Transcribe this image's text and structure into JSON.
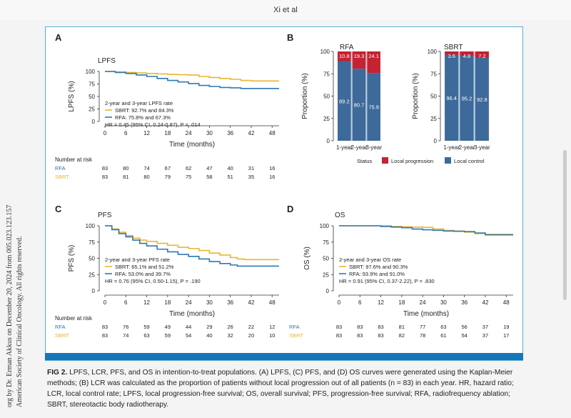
{
  "running_head": "Xi et al",
  "sidebar_lines": [
    "org by Dr. Erman Akkus on December 20, 2024 from 005.023.123.157",
    "American Society of Clinical Oncology. All rights reserved."
  ],
  "caption": {
    "label": "FIG 2.",
    "text": "LPFS, LCR, PFS, and OS in intention-to-treat populations. (A) LPFS, (C) PFS, and (D) OS curves were generated using the Kaplan-Meier methods; (B) LCR was calculated as the proportion of patients without local progression out of all patients (n = 83) in each year. HR, hazard ratio; LCR, local control rate; LPFS, local progression-free survival; OS, overall survival; PFS, progression-free survival; RFA, radiofrequency ablation; SBRT, stereotactic body radiotherapy."
  },
  "colors": {
    "sbrt": "#e8b630",
    "rfa": "#2e78b4",
    "local_control": "#3d6a9a",
    "local_progression": "#c52233",
    "frame": "#5aaed0",
    "bluebar": "#1577b9"
  },
  "panels": {
    "A": {
      "letter": "A",
      "title": "LPFS",
      "ylabel": "LPFS (%)",
      "xlabel": "Time (months)",
      "legend_title": "2-year and 3-year LPFS rate",
      "sbrt_label": "SBRT: 92.7% and 84.3%",
      "rfa_label": "RFA: 75.8% and 67.3%",
      "hr": "HR = 0.45 (95% CI, 0.24-0.87), P = .014"
    },
    "B": {
      "letter": "B",
      "status_label": "Status",
      "lp_label": "Local progression",
      "lc_label": "Local control",
      "ylabel": "Proportion (%)"
    },
    "C": {
      "letter": "C",
      "title": "PFS",
      "ylabel": "PFS (%)",
      "xlabel": "Time (months)",
      "legend_title": "2-year and 3-year PFS rate",
      "sbrt_label": "SBRT: 65.1% and 51.2%",
      "rfa_label": "RFA: 53.0% and 39.7%",
      "hr": "HR = 0.76 (95% CI, 0.50-1.15), P = .190"
    },
    "D": {
      "letter": "D",
      "title": "OS",
      "ylabel": "OS (%)",
      "xlabel": "Time (months)",
      "legend_title": "2-year and 3-year OS rate",
      "sbrt_label": "SBRT: 97.6% and 90.3%",
      "rfa_label": "RFA: 93.9% and 91.0%",
      "hr": "HR = 0.91 (95% CI, 0.37-2.22), P = .830"
    }
  },
  "risk": {
    "header": "Number at risk",
    "A": {
      "RFA": [
        "83",
        "80",
        "74",
        "67",
        "62",
        "47",
        "40",
        "31",
        "16"
      ],
      "SBRT": [
        "83",
        "81",
        "80",
        "79",
        "75",
        "58",
        "51",
        "35",
        "16"
      ]
    },
    "C": {
      "RFA": [
        "83",
        "76",
        "59",
        "49",
        "44",
        "29",
        "26",
        "22",
        "12"
      ],
      "SBRT": [
        "83",
        "74",
        "63",
        "59",
        "54",
        "40",
        "32",
        "20",
        "10"
      ]
    },
    "D": {
      "RFA": [
        "83",
        "83",
        "83",
        "81",
        "77",
        "63",
        "56",
        "37",
        "19"
      ],
      "SBRT": [
        "83",
        "83",
        "83",
        "82",
        "78",
        "61",
        "54",
        "37",
        "17"
      ]
    }
  },
  "chart_data": [
    {
      "panel": "A",
      "type": "line",
      "title": "LPFS",
      "xlabel": "Time (months)",
      "ylabel": "LPFS (%)",
      "xlim": [
        0,
        50
      ],
      "ylim": [
        0,
        100
      ],
      "xticks": [
        "0",
        "6",
        "12",
        "18",
        "24",
        "30",
        "36",
        "42",
        "48"
      ],
      "yticks": [
        "0",
        "25",
        "50",
        "75",
        "100"
      ],
      "series": [
        {
          "name": "SBRT",
          "x": [
            0,
            3,
            6,
            9,
            12,
            15,
            18,
            21,
            24,
            27,
            30,
            33,
            36,
            39,
            42,
            45,
            48,
            50
          ],
          "y": [
            100,
            99,
            98,
            97,
            96,
            95,
            94,
            93.5,
            92.7,
            90,
            88,
            86,
            84.3,
            82,
            81,
            81,
            81,
            81
          ]
        },
        {
          "name": "RFA",
          "x": [
            0,
            3,
            6,
            9,
            12,
            15,
            18,
            21,
            24,
            27,
            30,
            33,
            36,
            39,
            42,
            45,
            48,
            50
          ],
          "y": [
            100,
            98,
            96,
            93,
            90,
            86,
            82,
            79,
            75.8,
            72,
            70,
            68,
            67.3,
            66,
            66,
            66,
            66,
            66
          ]
        }
      ]
    },
    {
      "panel": "B-RFA",
      "type": "bar",
      "title": "RFA",
      "ylabel": "Proportion (%)",
      "ylim": [
        0,
        100
      ],
      "yticks": [
        "0",
        "25",
        "50",
        "75",
        "100"
      ],
      "categories": [
        "1-year",
        "2-year",
        "3-year"
      ],
      "series": [
        {
          "name": "Local control",
          "values": [
            89.2,
            80.7,
            75.9
          ]
        },
        {
          "name": "Local progression",
          "values": [
            10.8,
            19.3,
            24.1
          ]
        }
      ]
    },
    {
      "panel": "B-SBRT",
      "type": "bar",
      "title": "SBRT",
      "ylabel": "Proportion (%)",
      "ylim": [
        0,
        100
      ],
      "yticks": [
        "0",
        "25",
        "50",
        "75",
        "100"
      ],
      "categories": [
        "1-year",
        "2-year",
        "3-year"
      ],
      "series": [
        {
          "name": "Local control",
          "values": [
            96.4,
            95.2,
            92.8
          ]
        },
        {
          "name": "Local progression",
          "values": [
            3.6,
            4.8,
            7.2
          ]
        }
      ]
    },
    {
      "panel": "C",
      "type": "line",
      "title": "PFS",
      "xlabel": "Time (months)",
      "ylabel": "PFS (%)",
      "xlim": [
        0,
        50
      ],
      "ylim": [
        0,
        100
      ],
      "xticks": [
        "0",
        "6",
        "12",
        "18",
        "24",
        "30",
        "36",
        "42",
        "48"
      ],
      "yticks": [
        "0",
        "25",
        "50",
        "75",
        "100"
      ],
      "series": [
        {
          "name": "SBRT",
          "x": [
            0,
            2,
            4,
            6,
            8,
            10,
            12,
            15,
            18,
            21,
            24,
            27,
            30,
            33,
            36,
            38,
            40,
            42,
            45,
            48,
            50
          ],
          "y": [
            100,
            95,
            90,
            85,
            81,
            78,
            76,
            73,
            70,
            67,
            65.1,
            62,
            58,
            55,
            51.2,
            49,
            48,
            48,
            48,
            48,
            48
          ]
        },
        {
          "name": "RFA",
          "x": [
            0,
            2,
            4,
            6,
            8,
            10,
            12,
            15,
            18,
            21,
            24,
            27,
            30,
            33,
            36,
            38,
            40,
            42,
            45,
            48,
            50
          ],
          "y": [
            100,
            94,
            88,
            83,
            78,
            73,
            69,
            64,
            60,
            56,
            53,
            49,
            45,
            42,
            39.7,
            38,
            38,
            38,
            38,
            38,
            38
          ]
        }
      ]
    },
    {
      "panel": "D",
      "type": "line",
      "title": "OS",
      "xlabel": "Time (months)",
      "ylabel": "OS (%)",
      "xlim": [
        0,
        50
      ],
      "ylim": [
        0,
        100
      ],
      "xticks": [
        "0",
        "6",
        "12",
        "18",
        "24",
        "30",
        "36",
        "42",
        "48"
      ],
      "yticks": [
        "0",
        "25",
        "50",
        "75",
        "100"
      ],
      "series": [
        {
          "name": "SBRT",
          "x": [
            0,
            6,
            12,
            15,
            18,
            21,
            24,
            27,
            30,
            33,
            36,
            39,
            42,
            45,
            48,
            50
          ],
          "y": [
            100,
            100,
            100,
            99,
            98.5,
            98,
            97.6,
            95,
            93,
            92,
            90.3,
            88,
            87,
            87,
            87,
            87
          ]
        },
        {
          "name": "RFA",
          "x": [
            0,
            6,
            12,
            15,
            18,
            21,
            24,
            27,
            30,
            33,
            36,
            39,
            42,
            45,
            48,
            50
          ],
          "y": [
            100,
            100,
            99,
            98,
            97,
            95,
            93.9,
            93,
            92,
            91.5,
            91,
            89,
            86,
            86,
            86,
            86
          ]
        }
      ]
    }
  ]
}
